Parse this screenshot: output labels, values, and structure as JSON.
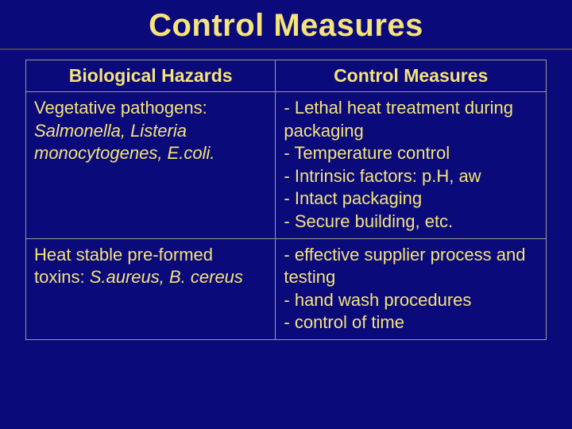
{
  "title": "Control Measures",
  "colors": {
    "background": "#0a0a7a",
    "text": "#f5e37b",
    "border": "#9a9a9a",
    "divider": "#444444"
  },
  "typography": {
    "title_fontsize": 40,
    "title_weight": 900,
    "header_fontsize": 23,
    "cell_fontsize": 22,
    "font_family": "Verdana"
  },
  "table": {
    "type": "table",
    "headers": [
      "Biological Hazards",
      "Control Measures"
    ],
    "column_widths": [
      "48%",
      "52%"
    ],
    "rows": [
      {
        "hazard_label": "Vegetative pathogens:",
        "hazard_examples": "Salmonella, Listeria monocytogenes, E.coli.",
        "measures": [
          "- Lethal heat treatment during packaging",
          "- Temperature control",
          "- Intrinsic factors: p.H, aw",
          "- Intact packaging",
          "- Secure building, etc."
        ]
      },
      {
        "hazard_label": "Heat stable pre-formed toxins: ",
        "hazard_examples": "S.aureus, B. cereus",
        "measures": [
          "- effective supplier process and testing",
          "- hand wash procedures",
          "- control of time"
        ]
      }
    ]
  }
}
